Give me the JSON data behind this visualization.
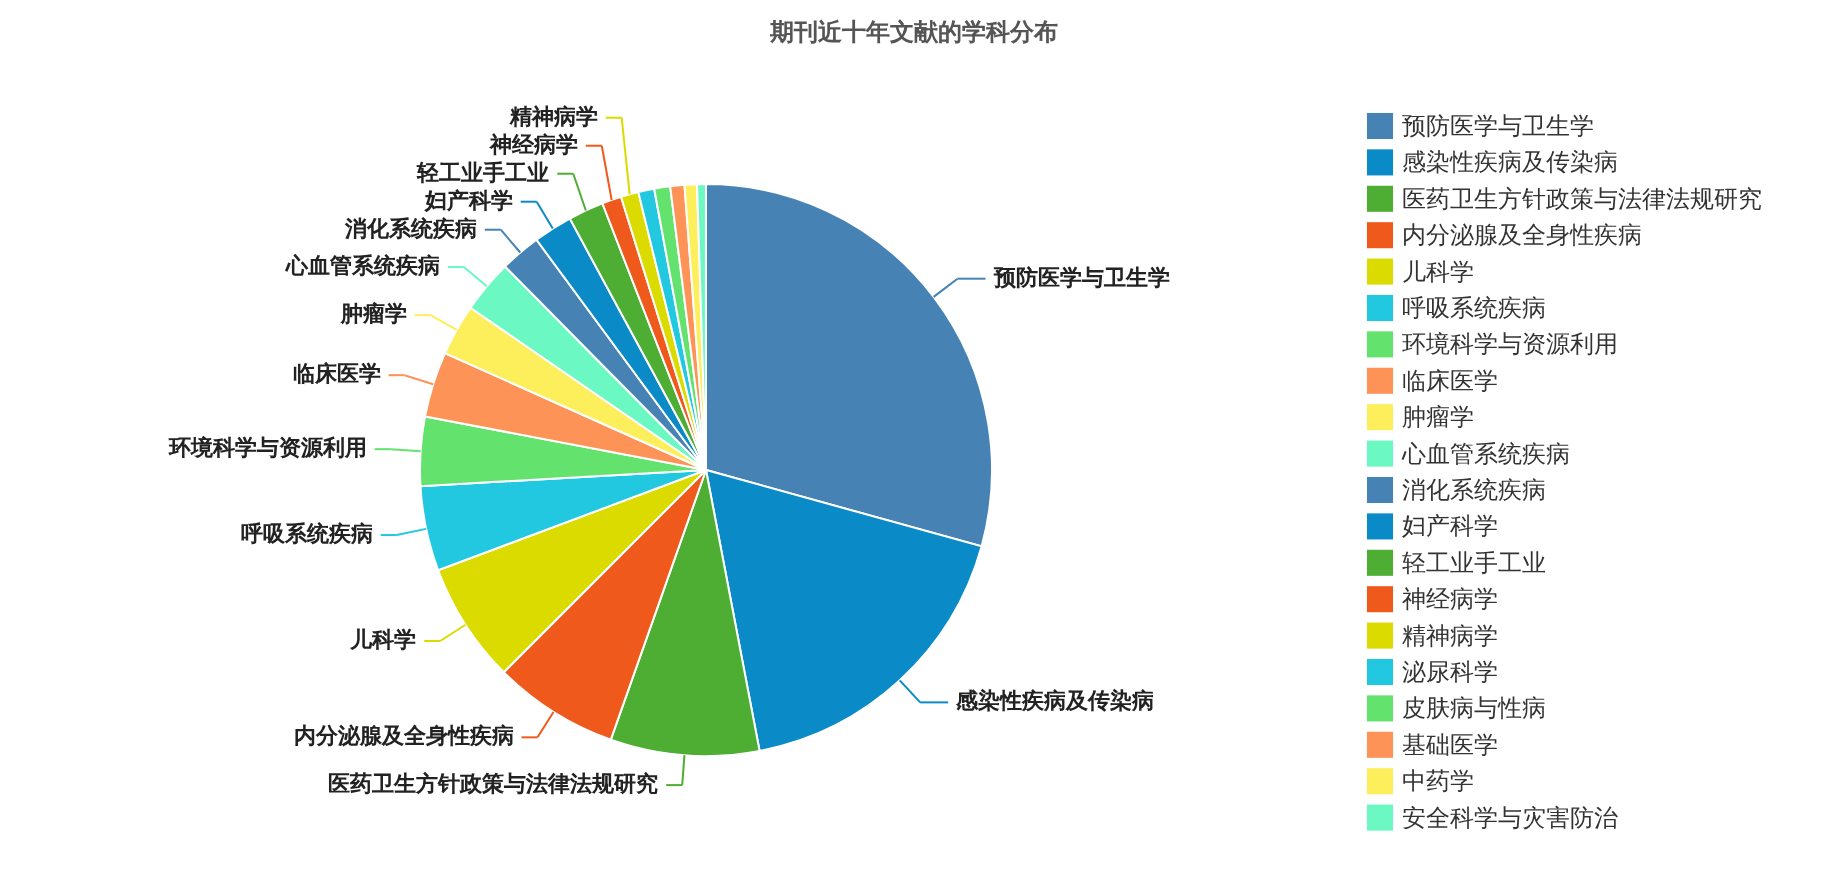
{
  "chart_data": {
    "type": "pie",
    "title": "期刊近十年文献的学科分布",
    "categories": [
      "预防医学与卫生学",
      "感染性疾病及传染病",
      "医药卫生方针政策与法律法规研究",
      "内分泌腺及全身性疾病",
      "儿科学",
      "呼吸系统疾病",
      "环境科学与资源利用",
      "临床医学",
      "肿瘤学",
      "心血管系统疾病",
      "消化系统疾病",
      "妇产科学",
      "轻工业手工业",
      "神经病学",
      "精神病学",
      "泌尿科学",
      "皮肤病与性病",
      "基础医学",
      "中药学",
      "安全科学与灾害防治"
    ],
    "values": [
      29.3,
      17.7,
      8.4,
      7.1,
      6.8,
      4.8,
      3.9,
      3.7,
      2.9,
      3.0,
      2.3,
      2.2,
      2.0,
      1.1,
      1.0,
      0.9,
      0.9,
      0.8,
      0.7,
      0.5
    ],
    "colors": [
      "#4682b4",
      "#0a8ac7",
      "#4eae33",
      "#ef5a1c",
      "#dbdb00",
      "#21c8e0",
      "#64e26e",
      "#fe9357",
      "#fdee5c",
      "#6bf8c2",
      "#4682b4",
      "#0a8ac7",
      "#4eae33",
      "#ef5a1c",
      "#dbdb00",
      "#21c8e0",
      "#64e26e",
      "#fe9357",
      "#fdee5c",
      "#6bf8c2"
    ],
    "value_labels": [
      "预防医学与卫生学",
      "感染性疾病及传染病",
      "医药卫生方针政策与法律法规研究",
      "内分泌腺及全身性疾病",
      "儿科学",
      "呼吸系统疾病",
      "环境科学与资源利用",
      "临床医学",
      "肿瘤学",
      "心血管系统疾病",
      "消化系统疾病",
      "妇产科学",
      "轻工业手工业",
      "神经病学",
      "精神病学",
      null,
      null,
      null,
      null,
      null
    ],
    "legend": "right"
  }
}
